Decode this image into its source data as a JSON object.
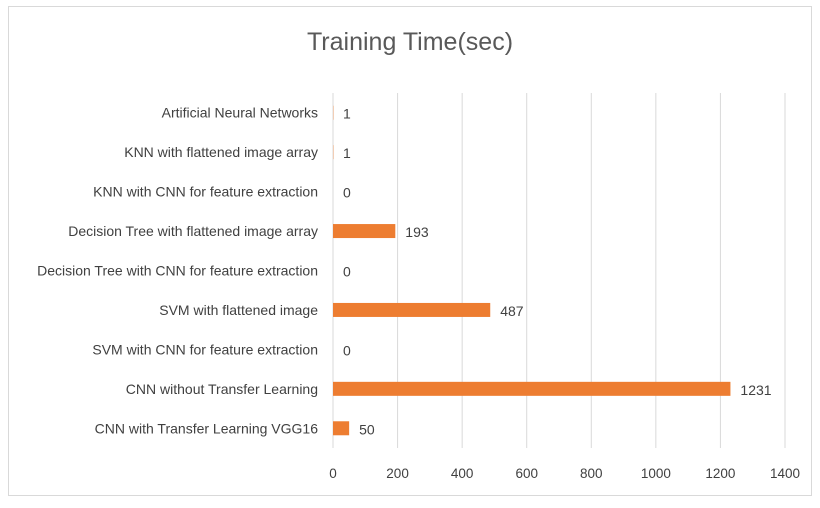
{
  "chart_data": {
    "type": "bar",
    "orientation": "horizontal",
    "title": "Training Time(sec)",
    "xlabel": "",
    "ylabel": "",
    "categories": [
      "Artificial Neural Networks",
      "KNN with flattened image array",
      "KNN with CNN for feature extraction",
      "Decision Tree with flattened image array",
      "Decision Tree with CNN for feature extraction",
      "SVM with flattened image",
      "SVM with CNN for feature extraction",
      "CNN without Transfer Learning",
      "CNN with Transfer Learning VGG16"
    ],
    "values": [
      1,
      1,
      0,
      193,
      0,
      487,
      0,
      1231,
      50
    ],
    "xlim": [
      0,
      1400
    ],
    "xticks": [
      "0",
      "200",
      "400",
      "600",
      "800",
      "1000",
      "1200",
      "1400"
    ],
    "grid": true,
    "legend": "none",
    "bar_color": "#ed7d31",
    "grid_color": "#d9d9d9"
  }
}
